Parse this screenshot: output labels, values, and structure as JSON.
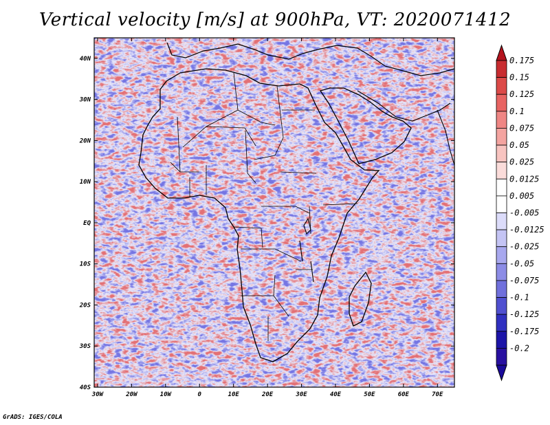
{
  "title": "Vertical velocity [m/s] at 900hPa, VT: 2020071412",
  "credit": "GrADS: IGES/COLA",
  "lat_labels": [
    "40N",
    "30N",
    "20N",
    "10N",
    "EQ",
    "10S",
    "20S",
    "30S",
    "40S"
  ],
  "lat_values": [
    40,
    30,
    20,
    10,
    0,
    -10,
    -20,
    -30,
    -40
  ],
  "lon_labels": [
    "30W",
    "20W",
    "10W",
    "0",
    "10E",
    "20E",
    "30E",
    "40E",
    "50E",
    "60E",
    "70E"
  ],
  "lon_values": [
    -30,
    -20,
    -10,
    0,
    10,
    20,
    30,
    40,
    50,
    60,
    70
  ],
  "map_extent": {
    "lon_min": -31,
    "lon_max": 75,
    "lat_min": -40,
    "lat_max": 45
  },
  "colorbar": {
    "labels": [
      "0.175",
      "0.15",
      "0.125",
      "0.1",
      "0.075",
      "0.05",
      "0.025",
      "0.0125",
      "0.005",
      "-0.005",
      "-0.0125",
      "-0.025",
      "-0.05",
      "-0.075",
      "-0.1",
      "-0.125",
      "-0.175",
      "-0.2"
    ],
    "colors": [
      "#b4141e",
      "#c82c30",
      "#dc4a48",
      "#e86462",
      "#ef8684",
      "#f4a4a0",
      "#f8c4c0",
      "#fbdcda",
      "#ffffff",
      "#ffffff",
      "#dcdcfa",
      "#c4c4f4",
      "#a8a8ee",
      "#8c8ce6",
      "#7070dc",
      "#5050d0",
      "#3030c0",
      "#1c14a8",
      "#2810a0",
      "#1a0a9a"
    ]
  }
}
